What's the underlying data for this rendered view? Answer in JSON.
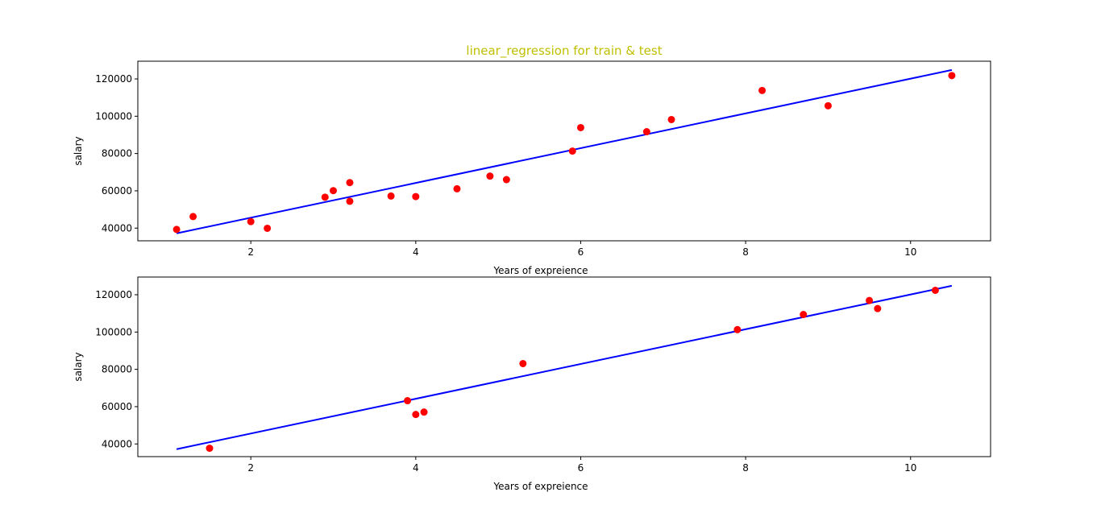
{
  "colors": {
    "title": "#bfbf00",
    "points": "#ff0000",
    "line": "#0000ff",
    "axes": "#000000"
  },
  "chart_data": [
    {
      "type": "scatter",
      "title": "linear_regression for train & test",
      "xlabel": "Years of expreience",
      "ylabel": "salary",
      "xlim": [
        0.63,
        10.97
      ],
      "ylim": [
        33200,
        129500
      ],
      "xticks": [
        2,
        4,
        6,
        8,
        10
      ],
      "yticks": [
        40000,
        60000,
        80000,
        100000,
        120000
      ],
      "grid": false,
      "series": [
        {
          "kind": "points",
          "x": [
            1.1,
            1.3,
            2.0,
            2.2,
            2.9,
            3.0,
            3.2,
            3.2,
            3.7,
            4.0,
            4.5,
            4.9,
            5.1,
            5.9,
            6.0,
            6.8,
            7.1,
            8.2,
            9.0,
            10.5
          ],
          "y": [
            39300,
            46200,
            43500,
            39900,
            56600,
            60100,
            54400,
            64400,
            57200,
            56900,
            61100,
            67900,
            66000,
            81300,
            93900,
            91700,
            98200,
            113800,
            105600,
            121800
          ]
        },
        {
          "kind": "line",
          "x": [
            1.1,
            10.5
          ],
          "y": [
            37200,
            124800
          ]
        }
      ]
    },
    {
      "type": "scatter",
      "title": "",
      "xlabel": "Years of expreience",
      "ylabel": "salary",
      "xlim": [
        0.63,
        10.97
      ],
      "ylim": [
        33200,
        129500
      ],
      "xticks": [
        2,
        4,
        6,
        8,
        10
      ],
      "yticks": [
        40000,
        60000,
        80000,
        100000,
        120000
      ],
      "grid": false,
      "series": [
        {
          "kind": "points",
          "x": [
            1.5,
            3.9,
            4.0,
            4.1,
            5.3,
            7.9,
            8.7,
            9.5,
            9.6,
            10.3
          ],
          "y": [
            37700,
            63200,
            55800,
            57100,
            83100,
            101300,
            109400,
            116900,
            112600,
            122400
          ]
        },
        {
          "kind": "line",
          "x": [
            1.1,
            10.5
          ],
          "y": [
            37200,
            124800
          ]
        }
      ]
    }
  ]
}
